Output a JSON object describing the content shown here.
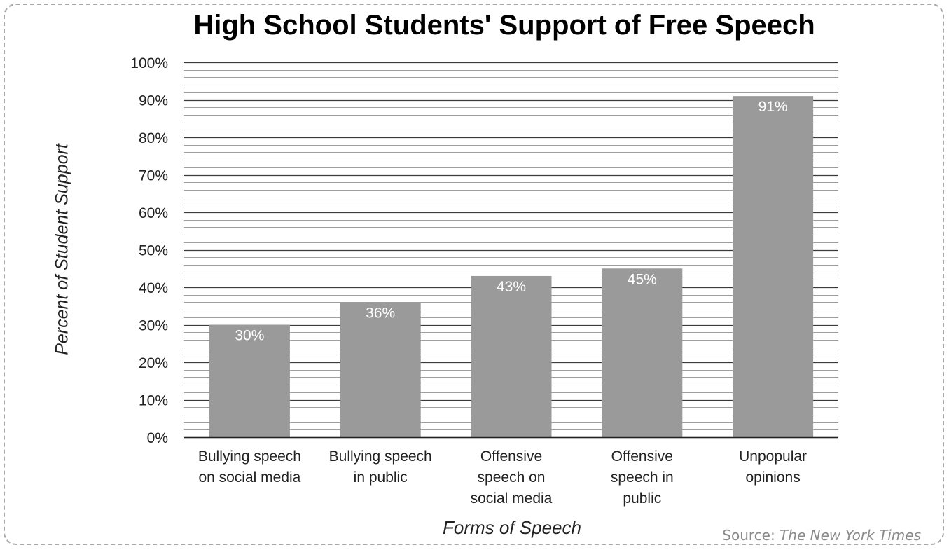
{
  "chart_data": {
    "type": "bar",
    "title": "High School Students' Support of Free Speech",
    "xlabel": "Forms of Speech",
    "ylabel": "Percent of Student Support",
    "categories": [
      [
        "Bullying speech",
        "on social media"
      ],
      [
        "Bullying speech",
        "in public"
      ],
      [
        "Offensive",
        "speech on",
        "social media"
      ],
      [
        "Offensive",
        "speech in",
        "public"
      ],
      [
        "Unpopular",
        "opinions"
      ]
    ],
    "values": [
      30,
      36,
      43,
      45,
      91
    ],
    "data_labels": [
      "30%",
      "36%",
      "43%",
      "45%",
      "91%"
    ],
    "ylim": [
      0,
      100
    ],
    "yticks": [
      "0%",
      "10%",
      "20%",
      "30%",
      "40%",
      "50%",
      "60%",
      "70%",
      "80%",
      "90%",
      "100%"
    ],
    "grid": true,
    "legend": "none",
    "colors": {
      "bar": "#9a9a9a",
      "grid": "#555555",
      "label_inside": "#ffffff"
    }
  },
  "source": {
    "prefix": "Source: ",
    "name": "The New York Times"
  }
}
